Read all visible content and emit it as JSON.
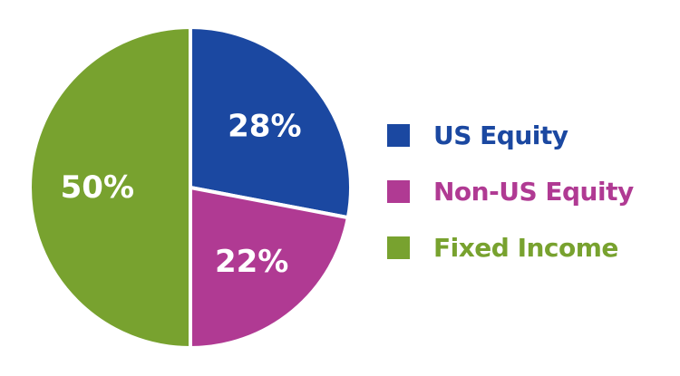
{
  "chart_data": {
    "type": "pie",
    "title": "",
    "slices": [
      {
        "label": "US Equity",
        "value": 28,
        "display": "28%",
        "color": "#1b48a1"
      },
      {
        "label": "Non-US Equity",
        "value": 22,
        "display": "22%",
        "color": "#b03a93"
      },
      {
        "label": "Fixed Income",
        "value": 50,
        "display": "50%",
        "color": "#78a22f"
      }
    ],
    "legend_placement": "right",
    "start_angle_deg": 0,
    "direction": "clockwise",
    "slice_text_color": "#ffffff",
    "separator_color": "#ffffff"
  }
}
